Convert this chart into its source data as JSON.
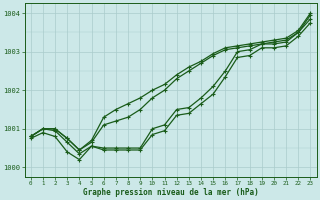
{
  "title": "Graphe pression niveau de la mer (hPa)",
  "bg_color": "#cce8e8",
  "grid_color": "#aacccc",
  "line_color": "#1a5c1a",
  "ylim": [
    999.75,
    1004.25
  ],
  "xlim": [
    -0.5,
    23.5
  ],
  "yticks": [
    1000,
    1001,
    1002,
    1003,
    1004
  ],
  "xticks": [
    0,
    1,
    2,
    3,
    4,
    5,
    6,
    7,
    8,
    9,
    10,
    11,
    12,
    13,
    14,
    15,
    16,
    17,
    18,
    19,
    20,
    21,
    22,
    23
  ],
  "line_main": [
    1000.8,
    1001.0,
    1000.95,
    1000.65,
    1000.35,
    1000.55,
    1000.5,
    1000.5,
    1000.5,
    1000.5,
    1001.0,
    1001.1,
    1001.5,
    1001.55,
    1001.8,
    1002.1,
    1002.5,
    1003.0,
    1003.05,
    1003.2,
    1003.2,
    1003.25,
    1003.5,
    1003.85
  ],
  "line_upper1": [
    1000.8,
    1001.0,
    1001.0,
    1000.75,
    1000.45,
    1000.65,
    1001.1,
    1001.2,
    1001.3,
    1001.5,
    1001.8,
    1002.0,
    1002.3,
    1002.5,
    1002.7,
    1002.9,
    1003.05,
    1003.1,
    1003.15,
    1003.2,
    1003.25,
    1003.3,
    1003.5,
    1003.95
  ],
  "line_upper2": [
    1000.8,
    1001.0,
    1001.0,
    1000.75,
    1000.45,
    1000.7,
    1001.3,
    1001.5,
    1001.65,
    1001.8,
    1002.0,
    1002.15,
    1002.4,
    1002.6,
    1002.75,
    1002.95,
    1003.1,
    1003.15,
    1003.2,
    1003.25,
    1003.3,
    1003.35,
    1003.55,
    1004.0
  ],
  "line_lower": [
    1000.75,
    1000.9,
    1000.8,
    1000.4,
    1000.2,
    1000.55,
    1000.45,
    1000.45,
    1000.45,
    1000.45,
    1000.85,
    1000.95,
    1001.35,
    1001.4,
    1001.65,
    1001.9,
    1002.35,
    1002.85,
    1002.9,
    1003.1,
    1003.1,
    1003.15,
    1003.4,
    1003.75
  ]
}
